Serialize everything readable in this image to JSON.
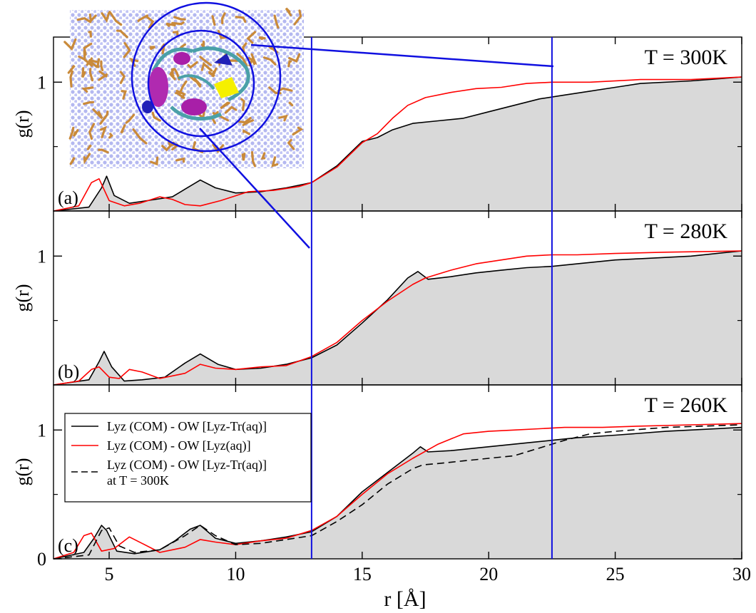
{
  "chart_data": {
    "type": "line",
    "x_axis": {
      "label": "r [Å]",
      "range": [
        2.8,
        30
      ],
      "ticks": [
        5,
        10,
        15,
        20,
        25,
        30
      ],
      "tick_labels": [
        "5",
        "10",
        "15",
        "20",
        "25",
        "30"
      ]
    },
    "shared_ylabel": "g(r)",
    "vertical_lines": [
      13.0,
      22.5
    ],
    "colors": {
      "black": "#000000",
      "red": "#ff0000",
      "fill": "#d9d9d9",
      "blue": "#1010e0"
    },
    "legend": {
      "entries": [
        {
          "text": "Lyz (COM) - OW [Lyz-Tr(aq)]",
          "style": "solid-black"
        },
        {
          "text": "Lyz (COM) - OW [Lyz(aq)]",
          "style": "solid-red"
        },
        {
          "text": "Lyz (COM) - OW [Lyz-Tr(aq)]",
          "text2": "at T = 300K",
          "style": "dashed-black"
        }
      ]
    },
    "inset": {
      "description_icon": "protein-snapshot-image"
    },
    "panels": [
      {
        "label": "(a)",
        "temperature": "T = 300K",
        "ylim": [
          0,
          1.35
        ],
        "y_ticks": [
          1
        ],
        "y_tick_labels": [
          "1"
        ],
        "series": [
          {
            "style": "black",
            "x": [
              2.8,
              4.2,
              4.7,
              4.9,
              5.2,
              5.8,
              6.5,
              7.5,
              8.0,
              8.6,
              9.2,
              10.0,
              11.0,
              12.0,
              12.5,
              13.0,
              14.0,
              15.0,
              15.6,
              16.2,
              17.0,
              18.0,
              19.0,
              20.0,
              21.0,
              22.0,
              23.0,
              24.0,
              25.0,
              26.0,
              28.0,
              30.0
            ],
            "y": [
              0.0,
              0.03,
              0.18,
              0.27,
              0.12,
              0.06,
              0.08,
              0.11,
              0.17,
              0.24,
              0.18,
              0.14,
              0.15,
              0.18,
              0.2,
              0.22,
              0.35,
              0.54,
              0.57,
              0.63,
              0.68,
              0.7,
              0.72,
              0.77,
              0.82,
              0.87,
              0.9,
              0.93,
              0.96,
              0.99,
              1.01,
              1.04
            ]
          },
          {
            "style": "red",
            "x": [
              2.8,
              3.8,
              4.3,
              4.6,
              5.0,
              5.6,
              6.2,
              7.0,
              7.5,
              8.0,
              8.6,
              9.4,
              10.5,
              11.5,
              12.5,
              13.0,
              14.0,
              15.0,
              15.6,
              16.2,
              16.8,
              17.5,
              18.5,
              19.5,
              20.5,
              21.5,
              22.5,
              24.0,
              26.0,
              28.0,
              30.0
            ],
            "y": [
              0.0,
              0.04,
              0.22,
              0.25,
              0.08,
              0.04,
              0.06,
              0.11,
              0.09,
              0.05,
              0.04,
              0.08,
              0.15,
              0.16,
              0.19,
              0.22,
              0.34,
              0.53,
              0.6,
              0.72,
              0.82,
              0.88,
              0.92,
              0.95,
              0.96,
              0.99,
              1.0,
              1.0,
              1.02,
              1.02,
              1.04
            ]
          }
        ]
      },
      {
        "label": "(b)",
        "temperature": "T = 280K",
        "ylim": [
          0,
          1.35
        ],
        "y_ticks": [
          1
        ],
        "y_tick_labels": [
          "1"
        ],
        "series": [
          {
            "style": "black",
            "x": [
              2.8,
              4.2,
              4.6,
              4.8,
              5.1,
              5.6,
              6.3,
              7.2,
              8.0,
              8.6,
              9.3,
              10.0,
              11.0,
              12.0,
              13.0,
              14.0,
              15.0,
              16.0,
              16.8,
              17.2,
              17.6,
              18.5,
              19.5,
              20.5,
              21.5,
              22.5,
              23.5,
              25.0,
              26.0,
              28.0,
              30.0
            ],
            "y": [
              0.0,
              0.04,
              0.18,
              0.26,
              0.14,
              0.03,
              0.04,
              0.06,
              0.17,
              0.24,
              0.16,
              0.12,
              0.13,
              0.16,
              0.21,
              0.31,
              0.48,
              0.66,
              0.83,
              0.88,
              0.82,
              0.84,
              0.87,
              0.89,
              0.91,
              0.92,
              0.94,
              0.97,
              0.98,
              1.0,
              1.04
            ]
          },
          {
            "style": "red",
            "x": [
              2.8,
              3.8,
              4.3,
              4.6,
              5.0,
              5.4,
              5.8,
              6.3,
              7.0,
              8.0,
              8.6,
              9.2,
              10.0,
              11.0,
              12.0,
              13.0,
              14.0,
              15.0,
              16.0,
              17.0,
              17.5,
              18.5,
              19.5,
              20.5,
              21.5,
              22.5,
              23.5,
              25.0,
              27.0,
              30.0
            ],
            "y": [
              0.0,
              0.03,
              0.12,
              0.14,
              0.06,
              0.05,
              0.12,
              0.1,
              0.05,
              0.09,
              0.16,
              0.13,
              0.12,
              0.14,
              0.15,
              0.22,
              0.33,
              0.5,
              0.65,
              0.78,
              0.83,
              0.89,
              0.94,
              0.97,
              1.0,
              1.01,
              1.01,
              1.02,
              1.03,
              1.04
            ]
          }
        ]
      },
      {
        "label": "(c)",
        "temperature": "T = 260K",
        "ylim": [
          0,
          1.35
        ],
        "y_ticks": [
          0,
          1
        ],
        "y_tick_labels": [
          "0",
          "1"
        ],
        "series": [
          {
            "style": "black",
            "x": [
              2.8,
              4.0,
              4.4,
              4.7,
              4.9,
              5.3,
              6.0,
              7.0,
              7.6,
              8.2,
              8.6,
              9.2,
              10.0,
              11.0,
              12.0,
              13.0,
              14.0,
              15.0,
              16.0,
              17.0,
              17.3,
              17.6,
              18.5,
              19.5,
              20.5,
              21.5,
              22.5,
              23.5,
              25.0,
              27.0,
              30.0
            ],
            "y": [
              0.0,
              0.05,
              0.16,
              0.26,
              0.22,
              0.06,
              0.04,
              0.07,
              0.14,
              0.23,
              0.26,
              0.16,
              0.12,
              0.14,
              0.17,
              0.21,
              0.33,
              0.52,
              0.67,
              0.82,
              0.87,
              0.83,
              0.84,
              0.86,
              0.88,
              0.9,
              0.92,
              0.94,
              0.96,
              0.99,
              1.02
            ]
          },
          {
            "style": "red",
            "x": [
              2.8,
              3.6,
              4.0,
              4.3,
              4.7,
              5.2,
              5.8,
              6.3,
              7.0,
              8.0,
              8.6,
              9.2,
              10.0,
              11.0,
              12.0,
              13.0,
              14.0,
              15.0,
              16.0,
              17.0,
              18.0,
              19.0,
              20.0,
              21.0,
              22.0,
              23.0,
              24.5,
              26.0,
              28.0,
              30.0
            ],
            "y": [
              0.0,
              0.05,
              0.18,
              0.2,
              0.06,
              0.08,
              0.17,
              0.12,
              0.05,
              0.09,
              0.15,
              0.13,
              0.11,
              0.14,
              0.16,
              0.22,
              0.33,
              0.5,
              0.66,
              0.78,
              0.89,
              0.97,
              0.99,
              1.0,
              1.01,
              1.02,
              1.02,
              1.03,
              1.04,
              1.05
            ]
          },
          {
            "style": "dashed",
            "x": [
              2.8,
              4.2,
              4.7,
              5.0,
              5.4,
              6.0,
              7.0,
              8.0,
              8.6,
              9.2,
              10.0,
              11.0,
              12.0,
              13.0,
              14.0,
              15.0,
              16.0,
              17.0,
              17.4,
              18.0,
              19.0,
              20.0,
              21.0,
              22.0,
              23.0,
              24.0,
              25.0,
              27.0,
              30.0
            ],
            "y": [
              0.0,
              0.03,
              0.22,
              0.24,
              0.1,
              0.05,
              0.07,
              0.18,
              0.26,
              0.18,
              0.11,
              0.12,
              0.15,
              0.18,
              0.29,
              0.42,
              0.58,
              0.7,
              0.73,
              0.74,
              0.76,
              0.78,
              0.8,
              0.86,
              0.92,
              0.97,
              0.99,
              1.02,
              1.04
            ]
          }
        ]
      }
    ]
  }
}
